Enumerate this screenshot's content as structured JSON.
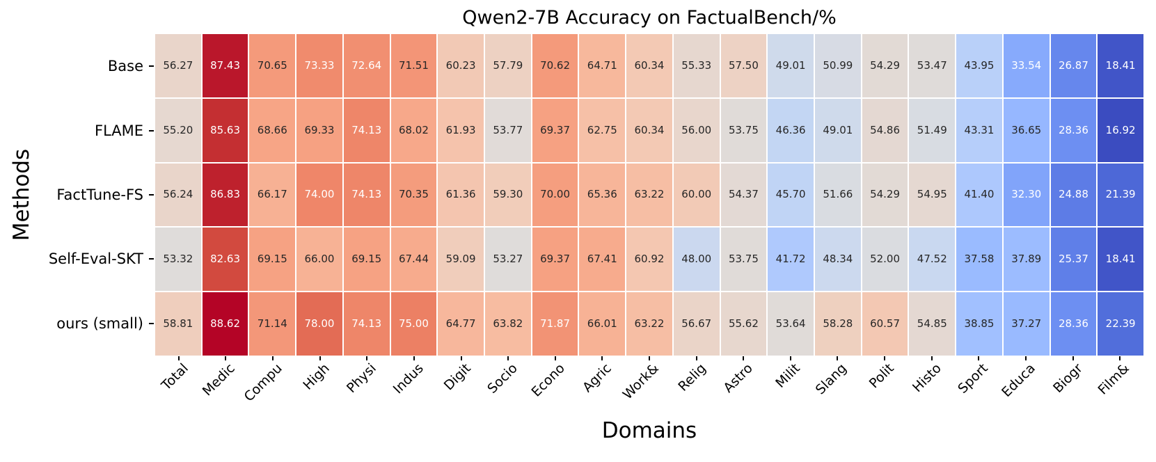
{
  "chart_data": {
    "type": "heatmap",
    "title": "Qwen2-7B Accuracy on FactualBench/%",
    "xlabel": "Domains",
    "ylabel": "Methods",
    "colormap": "coolwarm",
    "legend_position": "none",
    "grid": false,
    "vmin": 16.92,
    "vmax": 88.62,
    "color_min_hex": "#3b4cc0",
    "color_mid_hex": "#dddddd",
    "color_max_hex": "#b40426",
    "rows": [
      "Base",
      "FLAME",
      "FactTune-FS",
      "Self-Eval-SKT",
      "ours (small)"
    ],
    "columns": [
      "Total",
      "Medic",
      "Compu",
      "High",
      "Physi",
      "Indus",
      "Digit",
      "Socio",
      "Econo",
      "Agric",
      "Work&",
      "Relig",
      "Astro",
      "Milit",
      "Slang",
      "Polit",
      "Histo",
      "Sport",
      "Educa",
      "Biogr",
      "Film&"
    ],
    "values": [
      [
        56.27,
        87.43,
        70.65,
        73.33,
        72.64,
        71.51,
        60.23,
        57.79,
        70.62,
        64.71,
        60.34,
        55.33,
        57.5,
        49.01,
        50.99,
        54.29,
        53.47,
        43.95,
        33.54,
        26.87,
        18.41
      ],
      [
        55.2,
        85.63,
        68.66,
        69.33,
        74.13,
        68.02,
        61.93,
        53.77,
        69.37,
        62.75,
        60.34,
        56.0,
        53.75,
        46.36,
        49.01,
        54.86,
        51.49,
        43.31,
        36.65,
        28.36,
        16.92
      ],
      [
        56.24,
        86.83,
        66.17,
        74.0,
        74.13,
        70.35,
        61.36,
        59.3,
        70.0,
        65.36,
        63.22,
        60.0,
        54.37,
        45.7,
        51.66,
        54.29,
        54.95,
        41.4,
        32.3,
        24.88,
        21.39
      ],
      [
        53.32,
        82.63,
        69.15,
        66.0,
        69.15,
        67.44,
        59.09,
        53.27,
        69.37,
        67.41,
        60.92,
        48.0,
        53.75,
        41.72,
        48.34,
        52.0,
        47.52,
        37.58,
        37.89,
        25.37,
        18.41
      ],
      [
        58.81,
        88.62,
        71.14,
        78.0,
        74.13,
        75.0,
        64.77,
        63.82,
        71.87,
        66.01,
        63.22,
        56.67,
        55.62,
        53.64,
        58.28,
        60.57,
        54.85,
        38.85,
        37.27,
        28.36,
        22.39
      ]
    ]
  }
}
